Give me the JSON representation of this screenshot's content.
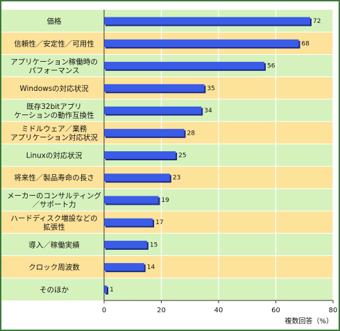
{
  "chart_data": {
    "type": "bar",
    "orientation": "horizontal",
    "categories": [
      [
        "価格"
      ],
      [
        "信頼性／安定性／可用性"
      ],
      [
        "アプリケーション稼働時の",
        "パフォーマンス"
      ],
      [
        "Windowsの対応状況"
      ],
      [
        "既存32bitアプリ",
        "ケーションの動作互換性"
      ],
      [
        "ミドルウェア／業務",
        "アプリケーション対応状況"
      ],
      [
        "Linuxの対応状況"
      ],
      [
        "将来性／製品寿命の長さ"
      ],
      [
        "メーカーのコンサルティング",
        "／サポート力"
      ],
      [
        "ハードディスク増設などの",
        "拡張性"
      ],
      [
        "導入／稼働実績"
      ],
      [
        "クロック周波数"
      ],
      [
        "そのほか"
      ]
    ],
    "values": [
      72,
      68,
      56,
      35,
      34,
      28,
      25,
      23,
      19,
      17,
      15,
      14,
      1
    ],
    "xlim": [
      0,
      80
    ],
    "xticks": [
      0,
      20,
      40,
      60,
      80
    ],
    "xlabel": "複数回答（%）",
    "grid": true,
    "colors": {
      "bar": "#3a5ce6",
      "bar_shadow": "#1b2a80",
      "band_green": "#d6f2bc",
      "band_yellow": "#fde29a",
      "grid": "#ffffff",
      "axis": "#333333"
    }
  }
}
